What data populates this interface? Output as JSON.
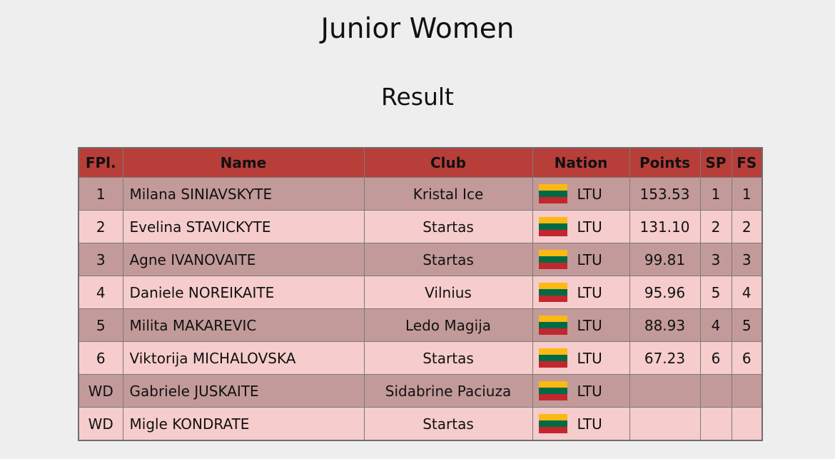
{
  "header": {
    "title": "Junior Women",
    "subtitle": "Result"
  },
  "table": {
    "columns": [
      "FPl.",
      "Name",
      "Club",
      "Nation",
      "Points",
      "SP",
      "FS"
    ],
    "rows": [
      {
        "fpl": "1",
        "name": "Milana SINIAVSKYTE",
        "club": "Kristal Ice",
        "nation": "LTU",
        "points": "153.53",
        "sp": "1",
        "fs": "1"
      },
      {
        "fpl": "2",
        "name": "Evelina STAVICKYTE",
        "club": "Startas",
        "nation": "LTU",
        "points": "131.10",
        "sp": "2",
        "fs": "2"
      },
      {
        "fpl": "3",
        "name": "Agne IVANOVAITE",
        "club": "Startas",
        "nation": "LTU",
        "points": "99.81",
        "sp": "3",
        "fs": "3"
      },
      {
        "fpl": "4",
        "name": "Daniele NOREIKAITE",
        "club": "Vilnius",
        "nation": "LTU",
        "points": "95.96",
        "sp": "5",
        "fs": "4"
      },
      {
        "fpl": "5",
        "name": "Milita MAKAREVIC",
        "club": "Ledo Magija",
        "nation": "LTU",
        "points": "88.93",
        "sp": "4",
        "fs": "5"
      },
      {
        "fpl": "6",
        "name": "Viktorija MICHALOVSKA",
        "club": "Startas",
        "nation": "LTU",
        "points": "67.23",
        "sp": "6",
        "fs": "6"
      },
      {
        "fpl": "WD",
        "name": "Gabriele JUSKAITE",
        "club": "Sidabrine Paciuza",
        "nation": "LTU"
      },
      {
        "fpl": "WD",
        "name": "Migle KONDRATE",
        "club": "Startas",
        "nation": "LTU"
      }
    ]
  }
}
